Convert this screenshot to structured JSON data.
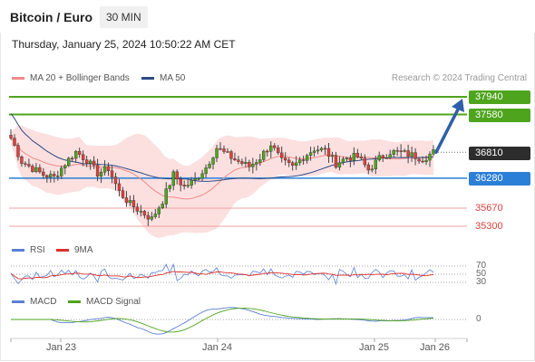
{
  "header": {
    "title": "Bitcoin / Euro",
    "interval": "30 MIN"
  },
  "datetime": "Thursday, January 25, 2024 10:50:22 AM CET",
  "legend": {
    "ma20": "MA 20 + Bollinger Bands",
    "ma50": "MA 50",
    "ma20_color": "#f08a8a",
    "ma50_color": "#2d4a87"
  },
  "credit": "Research © 2024 Trading Central",
  "levels": {
    "r2": "37940",
    "r1": "37580",
    "current": "36810",
    "pivot": "36280",
    "s1": "35670",
    "s2": "35300"
  },
  "rsi": {
    "label": "RSI",
    "ma_label": "9MA",
    "ticks": [
      "70",
      "50",
      "30"
    ]
  },
  "macd": {
    "label": "MACD",
    "signal_label": "MACD Signal",
    "zero": "0"
  },
  "xaxis": [
    "Jan 23",
    "Jan 24",
    "Jan 25",
    "Jan 26"
  ],
  "colors": {
    "up": "#4ea51d",
    "down": "#e0403c",
    "resistance": "#4ea51d",
    "pivot": "#2b7fd6",
    "support": "#f2a0a0",
    "arrow": "#2f5fa8"
  },
  "chart_data": {
    "type": "candlestick",
    "y_unit": "EUR",
    "ylim": [
      35200,
      38050
    ],
    "close_path": [
      37100,
      36620,
      36480,
      36350,
      36300,
      36580,
      36820,
      36650,
      36380,
      36480,
      36000,
      35750,
      35600,
      35450,
      35820,
      36350,
      36100,
      36250,
      36500,
      36900,
      36750,
      36620,
      36520,
      36700,
      36980,
      36620,
      36500,
      36720,
      36880,
      36850,
      36580,
      36700,
      36720,
      36450,
      36680,
      36820,
      36800,
      36750,
      36680,
      36810
    ],
    "overlays": [
      "MA 20 + Bollinger Bands",
      "MA 50"
    ]
  }
}
